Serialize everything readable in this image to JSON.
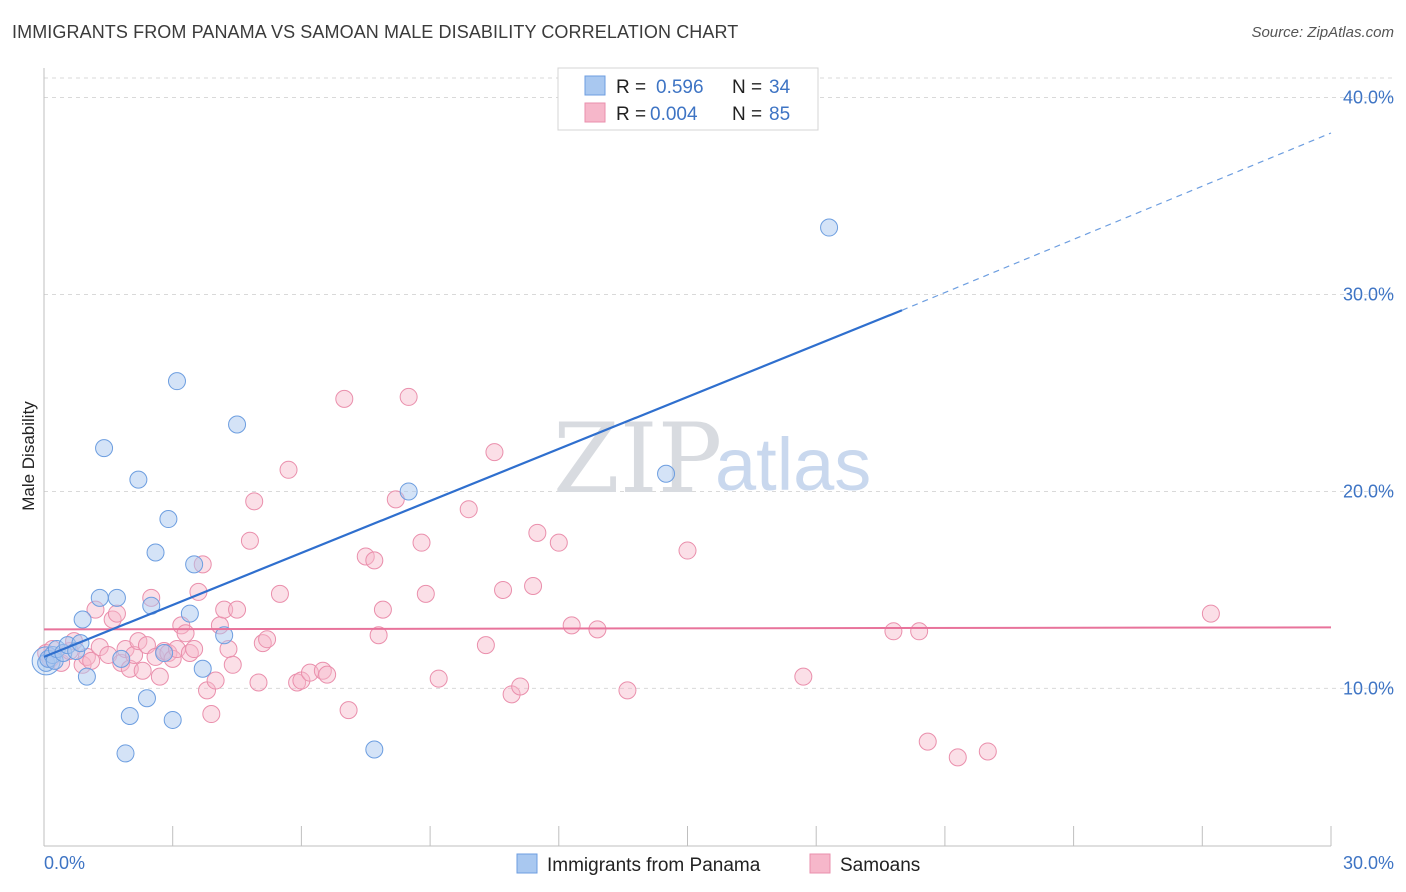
{
  "header": {
    "title": "IMMIGRANTS FROM PANAMA VS SAMOAN MALE DISABILITY CORRELATION CHART",
    "source": "Source: ZipAtlas.com"
  },
  "watermark": {
    "part1": "ZIP",
    "part2": "atlas"
  },
  "colors": {
    "blue_fill": "#a9c8f0",
    "blue_stroke": "#6d9ee0",
    "blue_line": "#2f6fce",
    "pink_fill": "#f6b7ca",
    "pink_stroke": "#ea8fac",
    "pink_line": "#e8739b",
    "grid": "#d9d9d9",
    "axis_text": "#3e74c4"
  },
  "legend": {
    "rows": [
      {
        "r_label": "R =",
        "r_value": "0.596",
        "n_label": "N =",
        "n_value": "34"
      },
      {
        "r_label": "R =",
        "r_value": "0.004",
        "n_label": "N =",
        "n_value": "85"
      }
    ]
  },
  "bottom_legend": [
    "Immigrants from Panama",
    "Samoans"
  ],
  "chart_data": {
    "type": "scatter",
    "title": "IMMIGRANTS FROM PANAMA VS SAMOAN MALE DISABILITY CORRELATION CHART",
    "xlabel": "",
    "ylabel": "Male Disability",
    "xlim": [
      0,
      30
    ],
    "ylim": [
      2.0,
      41.5
    ],
    "x_tick_labels": [
      "0.0%",
      "30.0%"
    ],
    "y_ticks": [
      10,
      20,
      30,
      40
    ],
    "y_tick_labels": [
      "10.0%",
      "20.0%",
      "30.0%",
      "40.0%"
    ],
    "grid": true,
    "series": [
      {
        "name": "Immigrants from Panama",
        "r": 0.596,
        "n": 34,
        "trend": {
          "x_start": 0,
          "y_start": 11.6,
          "x_solid_end": 20.0,
          "y_solid_end": 29.2,
          "x_end": 30.0,
          "y_end": 38.2
        },
        "points": [
          [
            0.05,
            11.3
          ],
          [
            0.1,
            11.5
          ],
          [
            0.2,
            11.7
          ],
          [
            0.25,
            11.4
          ],
          [
            0.3,
            12.0
          ],
          [
            0.45,
            11.8
          ],
          [
            0.55,
            12.2
          ],
          [
            0.75,
            11.9
          ],
          [
            0.85,
            12.3
          ],
          [
            0.9,
            13.5
          ],
          [
            1.0,
            10.6
          ],
          [
            1.3,
            14.6
          ],
          [
            1.4,
            22.2
          ],
          [
            1.7,
            14.6
          ],
          [
            1.8,
            11.5
          ],
          [
            1.9,
            6.7
          ],
          [
            2.0,
            8.6
          ],
          [
            2.2,
            20.6
          ],
          [
            2.4,
            9.5
          ],
          [
            2.5,
            14.2
          ],
          [
            2.6,
            16.9
          ],
          [
            2.8,
            11.8
          ],
          [
            2.9,
            18.6
          ],
          [
            3.0,
            8.4
          ],
          [
            3.1,
            25.6
          ],
          [
            3.4,
            13.8
          ],
          [
            3.5,
            16.3
          ],
          [
            3.7,
            11.0
          ],
          [
            4.2,
            12.7
          ],
          [
            4.5,
            23.4
          ],
          [
            7.7,
            6.9
          ],
          [
            8.5,
            20.0
          ],
          [
            14.5,
            20.9
          ],
          [
            18.3,
            33.4
          ]
        ]
      },
      {
        "name": "Samoans",
        "r": 0.004,
        "n": 85,
        "trend": {
          "x_start": 0,
          "y_start": 13.0,
          "x_end": 30.0,
          "y_end": 13.1
        },
        "points": [
          [
            0.05,
            11.8
          ],
          [
            0.15,
            11.5
          ],
          [
            0.2,
            12.0
          ],
          [
            0.4,
            11.3
          ],
          [
            0.6,
            11.9
          ],
          [
            0.7,
            12.4
          ],
          [
            0.9,
            11.2
          ],
          [
            1.0,
            11.6
          ],
          [
            1.1,
            11.4
          ],
          [
            1.2,
            14.0
          ],
          [
            1.3,
            12.1
          ],
          [
            1.5,
            11.7
          ],
          [
            1.6,
            13.5
          ],
          [
            1.7,
            13.8
          ],
          [
            1.8,
            11.3
          ],
          [
            1.9,
            12.0
          ],
          [
            2.0,
            11.0
          ],
          [
            2.1,
            11.7
          ],
          [
            2.2,
            12.4
          ],
          [
            2.3,
            10.9
          ],
          [
            2.4,
            12.2
          ],
          [
            2.5,
            14.6
          ],
          [
            2.6,
            11.6
          ],
          [
            2.7,
            10.6
          ],
          [
            2.8,
            11.9
          ],
          [
            2.9,
            11.8
          ],
          [
            3.0,
            11.5
          ],
          [
            3.1,
            12.0
          ],
          [
            3.2,
            13.2
          ],
          [
            3.3,
            12.8
          ],
          [
            3.4,
            11.8
          ],
          [
            3.5,
            12.0
          ],
          [
            3.6,
            14.9
          ],
          [
            3.7,
            16.3
          ],
          [
            3.8,
            9.9
          ],
          [
            3.9,
            8.7
          ],
          [
            4.0,
            10.4
          ],
          [
            4.1,
            13.2
          ],
          [
            4.2,
            14.0
          ],
          [
            4.3,
            12.0
          ],
          [
            4.4,
            11.2
          ],
          [
            4.5,
            14.0
          ],
          [
            4.8,
            17.5
          ],
          [
            4.9,
            19.5
          ],
          [
            5.0,
            10.3
          ],
          [
            5.1,
            12.3
          ],
          [
            5.2,
            12.5
          ],
          [
            5.5,
            14.8
          ],
          [
            5.7,
            21.1
          ],
          [
            5.9,
            10.3
          ],
          [
            6.0,
            10.4
          ],
          [
            6.2,
            10.8
          ],
          [
            6.5,
            10.9
          ],
          [
            6.6,
            10.7
          ],
          [
            7.0,
            24.7
          ],
          [
            7.1,
            8.9
          ],
          [
            7.5,
            16.7
          ],
          [
            7.7,
            16.5
          ],
          [
            7.8,
            12.7
          ],
          [
            7.9,
            14.0
          ],
          [
            8.2,
            19.6
          ],
          [
            8.5,
            24.8
          ],
          [
            8.8,
            17.4
          ],
          [
            8.9,
            14.8
          ],
          [
            9.2,
            10.5
          ],
          [
            9.9,
            19.1
          ],
          [
            10.3,
            12.2
          ],
          [
            10.5,
            22.0
          ],
          [
            10.7,
            15.0
          ],
          [
            10.9,
            9.7
          ],
          [
            11.1,
            10.1
          ],
          [
            11.4,
            15.2
          ],
          [
            11.5,
            17.9
          ],
          [
            12.0,
            17.4
          ],
          [
            12.3,
            13.2
          ],
          [
            12.9,
            13.0
          ],
          [
            13.6,
            9.9
          ],
          [
            15.0,
            17.0
          ],
          [
            17.7,
            10.6
          ],
          [
            19.8,
            12.9
          ],
          [
            20.4,
            12.9
          ],
          [
            20.6,
            7.3
          ],
          [
            21.3,
            6.5
          ],
          [
            22.0,
            6.8
          ],
          [
            27.2,
            13.8
          ]
        ]
      }
    ]
  }
}
